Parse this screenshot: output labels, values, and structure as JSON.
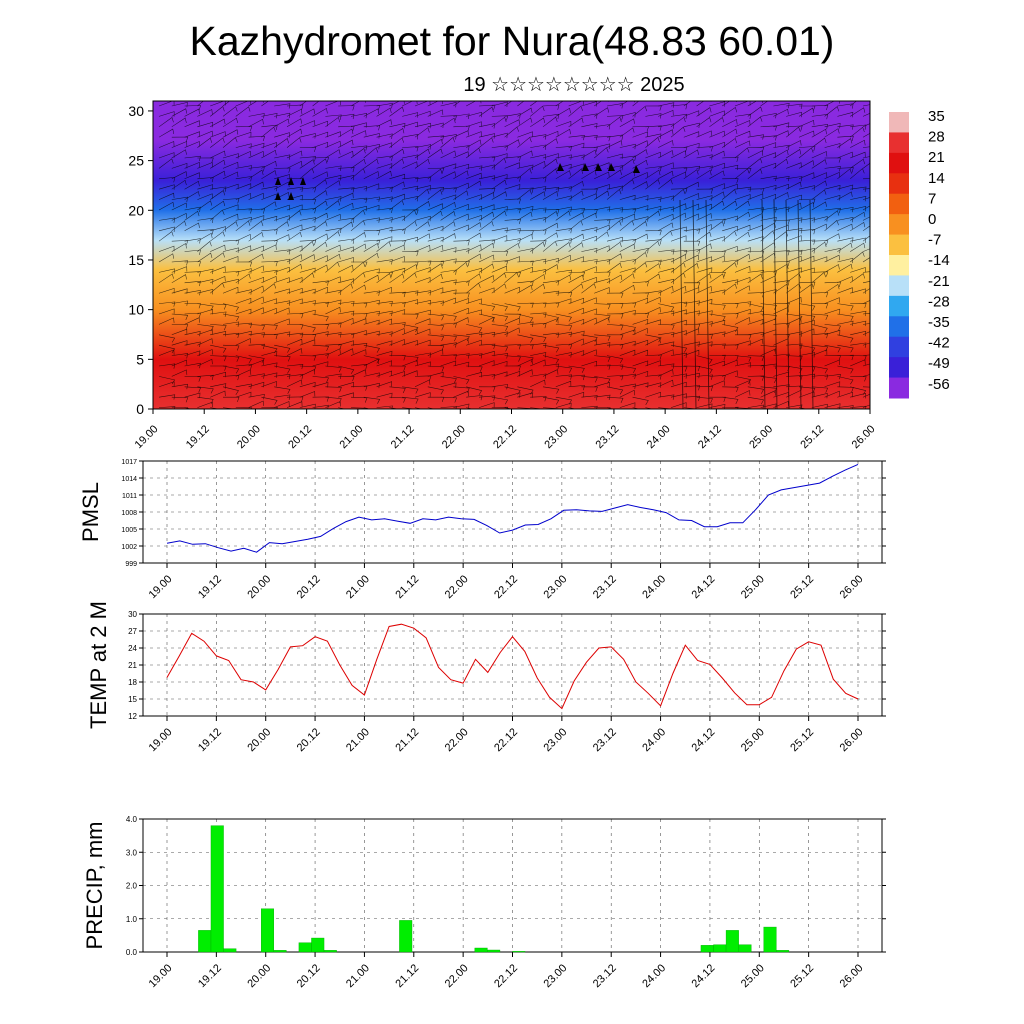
{
  "page": {
    "title": "Kazhydromet for Nura(48.83 60.01)",
    "subtitle": "19 ☆☆☆☆☆☆☆☆ 2025"
  },
  "colors": {
    "pmsl_line": "#0000cc",
    "temp_line": "#dd0000",
    "precip_bar": "#00ee00",
    "precip_bar_edge": "#00aa00",
    "wind_barb": "#000000"
  },
  "chart_data": [
    {
      "id": "cross_section",
      "type": "heatmap",
      "title": "",
      "xlabel": "",
      "ylabel": "",
      "x_ticks": [
        "19.00",
        "19.12",
        "20.00",
        "20.12",
        "21.00",
        "21.12",
        "22.00",
        "22.12",
        "23.00",
        "23.12",
        "24.00",
        "24.12",
        "25.00",
        "25.12",
        "26.00"
      ],
      "y_ticks": [
        "0",
        "5",
        "10",
        "15",
        "20",
        "25",
        "30"
      ],
      "ylim": [
        0,
        31
      ],
      "colorbar_labels": [
        "35",
        "28",
        "21",
        "14",
        "7",
        "0",
        "-7",
        "-14",
        "-21",
        "-28",
        "-35",
        "-42",
        "-49",
        "-56"
      ],
      "colorbar_colors": [
        "#f0b8b8",
        "#e83030",
        "#e01010",
        "#e83010",
        "#f26010",
        "#f89020",
        "#fbc040",
        "#fff0a0",
        "#b8e0f8",
        "#30a8f0",
        "#2070e8",
        "#3040e0",
        "#3a20d8",
        "#8a2ae0"
      ],
      "temperature_profile": [
        {
          "z": 0,
          "t": 30
        },
        {
          "z": 5,
          "t": 18
        },
        {
          "z": 10,
          "t": 2
        },
        {
          "z": 14,
          "t": -10
        },
        {
          "z": 17,
          "t": -22
        },
        {
          "z": 20,
          "t": -35
        },
        {
          "z": 23,
          "t": -48
        },
        {
          "z": 27,
          "t": -58
        },
        {
          "z": 31,
          "t": -56
        }
      ]
    },
    {
      "id": "pmsl",
      "type": "line",
      "ylabel": "PMSL",
      "x_ticks": [
        "19.00",
        "19.12",
        "20.00",
        "20.12",
        "21.00",
        "21.12",
        "22.00",
        "22.12",
        "23.00",
        "23.12",
        "24.00",
        "24.12",
        "25.00",
        "25.12",
        "26.00"
      ],
      "y_ticks": [
        "999",
        "1002",
        "1005",
        "1008",
        "1011",
        "1014",
        "1017"
      ],
      "ylim": [
        999,
        1017
      ],
      "series": [
        {
          "values": [
            1002.5,
            1002.9,
            1002.3,
            1002.4,
            1001.7,
            1001.1,
            1001.6,
            1000.9,
            1002.6,
            1002.4,
            1002.8,
            1003.2,
            1003.7,
            1005.1,
            1006.3,
            1007.1,
            1006.6,
            1006.8,
            1006.4,
            1006.0,
            1006.8,
            1006.6,
            1007.1,
            1006.8,
            1006.7,
            1005.6,
            1004.3,
            1004.8,
            1005.7,
            1005.8,
            1006.8,
            1008.3,
            1008.4,
            1008.2,
            1008.1,
            1008.7,
            1009.3,
            1008.8,
            1008.4,
            1007.9,
            1006.6,
            1006.5,
            1005.4,
            1005.4,
            1006.1,
            1006.1,
            1008.4,
            1011.0,
            1011.9,
            1012.3,
            1012.7,
            1013.1,
            1014.3,
            1015.4,
            1016.4
          ]
        }
      ]
    },
    {
      "id": "temp2m",
      "type": "line",
      "ylabel": "TEMP at 2 M",
      "x_ticks": [
        "19.00",
        "19.12",
        "20.00",
        "20.12",
        "21.00",
        "21.12",
        "22.00",
        "22.12",
        "23.00",
        "23.12",
        "24.00",
        "24.12",
        "25.00",
        "25.12",
        "26.00"
      ],
      "y_ticks": [
        "12",
        "15",
        "18",
        "21",
        "24",
        "27",
        "30"
      ],
      "ylim": [
        12,
        30
      ],
      "series": [
        {
          "values": [
            18.8,
            22.6,
            26.6,
            25.2,
            22.6,
            21.8,
            18.4,
            18.0,
            16.6,
            20.2,
            24.2,
            24.4,
            26.0,
            25.2,
            21.0,
            17.4,
            15.7,
            22.0,
            27.8,
            28.2,
            27.5,
            25.8,
            20.6,
            18.4,
            17.8,
            22.0,
            19.7,
            23.2,
            26.0,
            23.4,
            18.7,
            15.3,
            13.3,
            18.2,
            21.5,
            24.0,
            24.2,
            22.0,
            18.0,
            16.0,
            13.8,
            19.5,
            24.5,
            21.8,
            21.1,
            18.7,
            16.1,
            14.0,
            14.0,
            15.3,
            20.0,
            23.8,
            25.1,
            24.5,
            18.5,
            16.0,
            15.0
          ]
        }
      ]
    },
    {
      "id": "precip",
      "type": "bar",
      "ylabel": "PRECIP, mm",
      "x_ticks": [
        "19.00",
        "19.12",
        "20.00",
        "20.12",
        "21.00",
        "21.12",
        "22.00",
        "22.12",
        "23.00",
        "23.12",
        "24.00",
        "24.12",
        "25.00",
        "25.12",
        "26.00"
      ],
      "y_ticks": [
        "0.0",
        "1.0",
        "2.0",
        "3.0",
        "4.0"
      ],
      "ylim": [
        0,
        4
      ],
      "series": [
        {
          "values": [
            0,
            0,
            0,
            0.65,
            3.8,
            0.1,
            0,
            0,
            1.3,
            0.05,
            0,
            0.28,
            0.42,
            0.05,
            0,
            0,
            0,
            0,
            0,
            0.95,
            0,
            0,
            0,
            0,
            0,
            0.12,
            0.06,
            0,
            0.02,
            0,
            0,
            0,
            0,
            0,
            0,
            0,
            0,
            0,
            0,
            0,
            0,
            0,
            0,
            0.2,
            0.22,
            0.65,
            0.22,
            0,
            0.75,
            0.05,
            0,
            0,
            0,
            0,
            0,
            0
          ]
        }
      ]
    }
  ]
}
